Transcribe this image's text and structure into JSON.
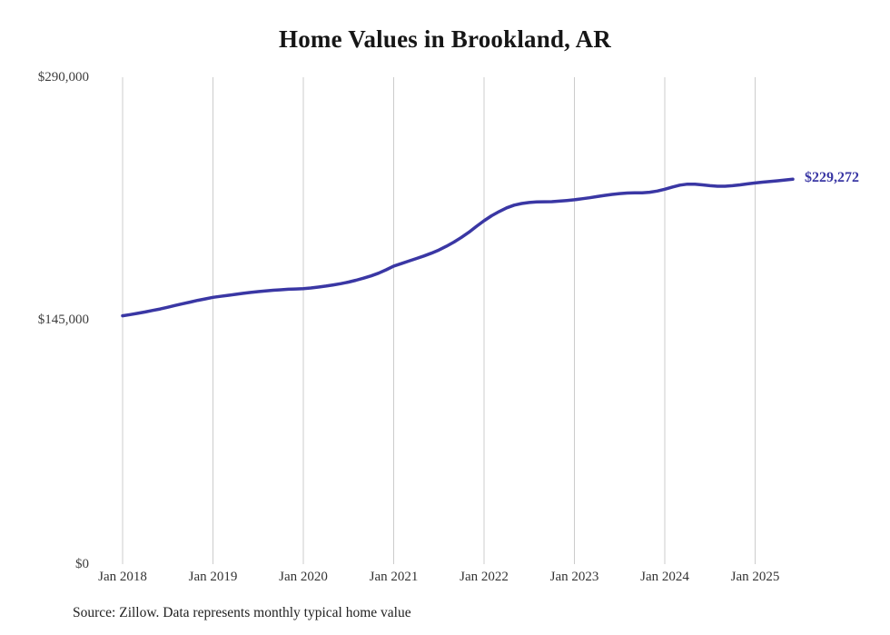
{
  "page": {
    "title": "Home Values in Brookland, AR",
    "source": "Source: Zillow. Data represents monthly typical home value"
  },
  "chart_data": {
    "type": "line",
    "title": "Home Values in Brookland, AR",
    "xlabel": "",
    "ylabel": "",
    "ylim": [
      0,
      290000
    ],
    "grid": "vertical-only",
    "legend": false,
    "line_color": "#3a37a4",
    "grid_color": "#cccccc",
    "end_label": "$229,272",
    "end_value": 229272,
    "y_ticks": [
      "$290,000",
      "$145,000",
      "$0"
    ],
    "x_ticks": [
      "Jan 2018",
      "Jan 2019",
      "Jan 2020",
      "Jan 2021",
      "Jan 2022",
      "Jan 2023",
      "Jan 2024",
      "Jan 2025"
    ],
    "x": [
      "2018-01",
      "2018-02",
      "2018-03",
      "2018-04",
      "2018-05",
      "2018-06",
      "2018-07",
      "2018-08",
      "2018-09",
      "2018-10",
      "2018-11",
      "2018-12",
      "2019-01",
      "2019-02",
      "2019-03",
      "2019-04",
      "2019-05",
      "2019-06",
      "2019-07",
      "2019-08",
      "2019-09",
      "2019-10",
      "2019-11",
      "2019-12",
      "2020-01",
      "2020-02",
      "2020-03",
      "2020-04",
      "2020-05",
      "2020-06",
      "2020-07",
      "2020-08",
      "2020-09",
      "2020-10",
      "2020-11",
      "2020-12",
      "2021-01",
      "2021-02",
      "2021-03",
      "2021-04",
      "2021-05",
      "2021-06",
      "2021-07",
      "2021-08",
      "2021-09",
      "2021-10",
      "2021-11",
      "2021-12",
      "2022-01",
      "2022-02",
      "2022-03",
      "2022-04",
      "2022-05",
      "2022-06",
      "2022-07",
      "2022-08",
      "2022-09",
      "2022-10",
      "2022-11",
      "2022-12",
      "2023-01",
      "2023-02",
      "2023-03",
      "2023-04",
      "2023-05",
      "2023-06",
      "2023-07",
      "2023-08",
      "2023-09",
      "2023-10",
      "2023-11",
      "2023-12",
      "2024-01",
      "2024-02",
      "2024-03",
      "2024-04",
      "2024-05",
      "2024-06",
      "2024-07",
      "2024-08",
      "2024-09",
      "2024-10",
      "2024-11",
      "2024-12",
      "2025-01",
      "2025-02",
      "2025-03",
      "2025-04",
      "2025-05",
      "2025-06"
    ],
    "values": [
      147900,
      148600,
      149400,
      150200,
      151100,
      152000,
      153000,
      154100,
      155100,
      156100,
      157100,
      158000,
      158900,
      159500,
      160100,
      160700,
      161300,
      161800,
      162300,
      162700,
      163100,
      163400,
      163700,
      163900,
      164100,
      164500,
      165000,
      165600,
      166300,
      167100,
      168000,
      169100,
      170300,
      171700,
      173300,
      175300,
      177500,
      179000,
      180500,
      182000,
      183500,
      185200,
      187100,
      189300,
      191800,
      194600,
      197700,
      201200,
      204500,
      207500,
      210000,
      212200,
      213800,
      214800,
      215400,
      215700,
      215800,
      215900,
      216200,
      216600,
      217000,
      217600,
      218200,
      218900,
      219600,
      220200,
      220700,
      221000,
      221100,
      221200,
      221500,
      222200,
      223300,
      224600,
      225700,
      226300,
      226300,
      225900,
      225400,
      225100,
      225100,
      225400,
      225900,
      226500,
      227000,
      227500,
      227900,
      228300,
      228800,
      229272
    ],
    "source": "Source: Zillow. Data represents monthly typical home value"
  }
}
